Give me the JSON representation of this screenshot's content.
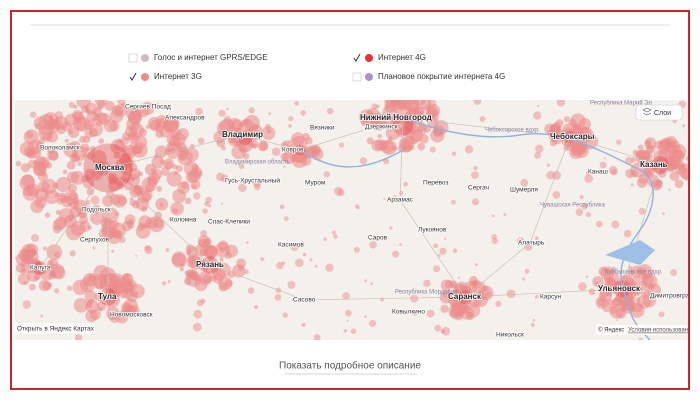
{
  "legend": {
    "items": [
      {
        "label": "Голос и интернет GPRS/EDGE",
        "color": "#cdbdbd",
        "checked": false
      },
      {
        "label": "Интернет 4G",
        "color": "#e3353b",
        "checked": true
      },
      {
        "label": "Интернет 3G",
        "color": "#ec8b8b",
        "checked": true
      },
      {
        "label": "Плановое покрытие интернета 4G",
        "color": "#b48ec9",
        "checked": false
      }
    ]
  },
  "map": {
    "layers_button": "Слои",
    "open_link": "Открыть в Яндекс Картах",
    "copyright": "© Яндекс",
    "terms": "Условия использования",
    "cities": [
      {
        "label": "Москва",
        "major": true
      },
      {
        "label": "Нижний Новгород",
        "major": true
      },
      {
        "label": "Владимир",
        "major": true
      },
      {
        "label": "Казань",
        "major": true
      },
      {
        "label": "Чебоксары",
        "major": true
      },
      {
        "label": "Рязань",
        "major": true
      },
      {
        "label": "Саранск",
        "major": true
      },
      {
        "label": "Ульяновск",
        "major": true
      },
      {
        "label": "Тула",
        "major": true
      },
      {
        "label": "Дзержинск",
        "major": false
      },
      {
        "label": "Александров",
        "major": false
      },
      {
        "label": "Сергиев Посад",
        "major": false
      },
      {
        "label": "Волоколамск",
        "major": false
      },
      {
        "label": "Ковров",
        "major": false
      },
      {
        "label": "Вязники",
        "major": false
      },
      {
        "label": "Подольск",
        "major": false
      },
      {
        "label": "Коломна",
        "major": false
      },
      {
        "label": "Гусь-Хрустальный",
        "major": false
      },
      {
        "label": "Муром",
        "major": false
      },
      {
        "label": "Арзамас",
        "major": false
      },
      {
        "label": "Перевоз",
        "major": false
      },
      {
        "label": "Сергач",
        "major": false
      },
      {
        "label": "Шумерля",
        "major": false
      },
      {
        "label": "Канаш",
        "major": false
      },
      {
        "label": "Серпухов",
        "major": false
      },
      {
        "label": "Калуга",
        "major": false
      },
      {
        "label": "Спас-Клепики",
        "major": false
      },
      {
        "label": "Касимов",
        "major": false
      },
      {
        "label": "Саров",
        "major": false
      },
      {
        "label": "Лукоянов",
        "major": false
      },
      {
        "label": "Алатырь",
        "major": false
      },
      {
        "label": "Новомосковск",
        "major": false
      },
      {
        "label": "Димитровград",
        "major": false
      },
      {
        "label": "Карсун",
        "major": false
      },
      {
        "label": "Сасово",
        "major": false
      },
      {
        "label": "Ковылкино",
        "major": false
      },
      {
        "label": "Никольск",
        "major": false
      }
    ],
    "regions": [
      "Владимирская область",
      "Чувашская Республика",
      "Республика Мордовия",
      "Куйбышевское вдхр.",
      "Чебоксарское вдхр.",
      "Республика Марий Эл"
    ]
  },
  "footer": {
    "details_link": "Показать подробное описание"
  }
}
